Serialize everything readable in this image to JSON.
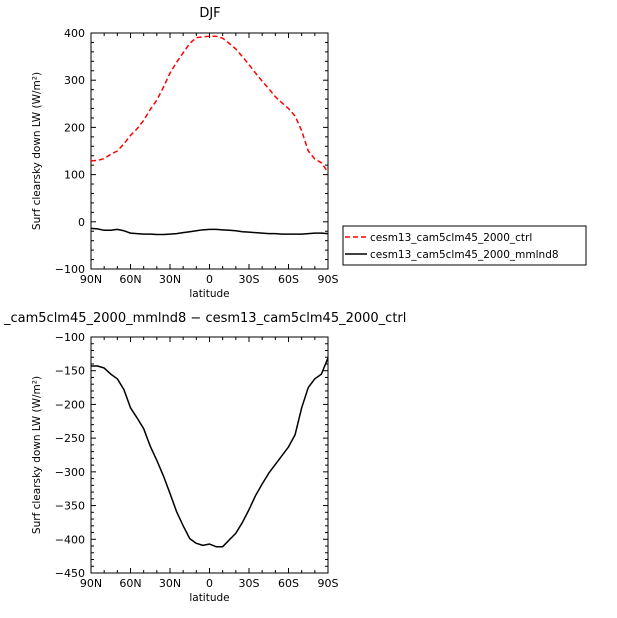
{
  "chart_data": [
    {
      "type": "line",
      "title": "DJF",
      "xlabel": "latitude",
      "ylabel": "Surf clearsky down LW (W/m²)",
      "xlim": [
        90,
        -90
      ],
      "ylim": [
        -100,
        400
      ],
      "xticks": [
        90,
        60,
        30,
        0,
        -30,
        -60,
        -90
      ],
      "xtick_labels": [
        "90N",
        "60N",
        "30N",
        "0",
        "30S",
        "60S",
        "90S"
      ],
      "yticks": [
        -100,
        0,
        100,
        200,
        300,
        400
      ],
      "ytick_labels": [
        "−100",
        "0",
        "100",
        "200",
        "300",
        "400"
      ],
      "legend_position": "right",
      "series": [
        {
          "name": "cesm13_cam5clm45_2000_ctrl",
          "color": "#ff0000",
          "style": "dashed",
          "x": [
            90,
            85,
            80,
            75,
            70,
            65,
            60,
            55,
            50,
            45,
            40,
            35,
            30,
            25,
            20,
            15,
            10,
            5,
            0,
            -5,
            -10,
            -15,
            -20,
            -25,
            -30,
            -35,
            -40,
            -45,
            -50,
            -55,
            -60,
            -65,
            -70,
            -75,
            -80,
            -85,
            -90
          ],
          "y": [
            129,
            130,
            134,
            143,
            150,
            165,
            183,
            197,
            215,
            238,
            258,
            285,
            315,
            338,
            358,
            378,
            390,
            392,
            393,
            393,
            389,
            378,
            366,
            350,
            333,
            315,
            298,
            282,
            265,
            252,
            240,
            224,
            193,
            150,
            133,
            125,
            105
          ]
        },
        {
          "name": "cesm13_cam5clm45_2000_mmlnd8",
          "color": "#000000",
          "style": "solid",
          "x": [
            90,
            85,
            80,
            75,
            70,
            65,
            60,
            55,
            50,
            45,
            40,
            35,
            30,
            25,
            20,
            15,
            10,
            5,
            0,
            -5,
            -10,
            -15,
            -20,
            -25,
            -30,
            -35,
            -40,
            -45,
            -50,
            -55,
            -60,
            -65,
            -70,
            -75,
            -80,
            -85,
            -90
          ],
          "y": [
            -14,
            -15,
            -18,
            -18,
            -16,
            -19,
            -24,
            -25,
            -26,
            -26,
            -27,
            -27,
            -26,
            -25,
            -23,
            -21,
            -19,
            -17,
            -16,
            -16,
            -17,
            -18,
            -19,
            -21,
            -22,
            -23,
            -24,
            -25,
            -25,
            -26,
            -26,
            -26,
            -26,
            -25,
            -24,
            -24,
            -25
          ]
        }
      ]
    },
    {
      "type": "line",
      "title": "_cam5clm45_2000_mmlnd8 − cesm13_cam5clm45_2000_ctrl",
      "xlabel": "latitude",
      "ylabel": "Surf clearsky down LW (W/m²)",
      "xlim": [
        90,
        -90
      ],
      "ylim": [
        -450,
        -100
      ],
      "xticks": [
        90,
        60,
        30,
        0,
        -30,
        -60,
        -90
      ],
      "xtick_labels": [
        "90N",
        "60N",
        "30N",
        "0",
        "30S",
        "60S",
        "90S"
      ],
      "yticks": [
        -450,
        -400,
        -350,
        -300,
        -250,
        -200,
        -150,
        -100
      ],
      "ytick_labels": [
        "−450",
        "−400",
        "−350",
        "−300",
        "−250",
        "−200",
        "−150",
        "−100"
      ],
      "series": [
        {
          "color": "#000000",
          "style": "solid",
          "x": [
            90,
            85,
            80,
            75,
            70,
            65,
            60,
            55,
            50,
            45,
            40,
            35,
            30,
            25,
            20,
            15,
            10,
            5,
            0,
            -5,
            -10,
            -15,
            -20,
            -25,
            -30,
            -35,
            -40,
            -45,
            -50,
            -55,
            -60,
            -65,
            -70,
            -75,
            -80,
            -85,
            -90
          ],
          "y": [
            -143,
            -143,
            -146,
            -155,
            -162,
            -178,
            -205,
            -220,
            -236,
            -262,
            -283,
            -306,
            -332,
            -359,
            -380,
            -399,
            -406,
            -409,
            -407,
            -411,
            -411,
            -401,
            -391,
            -375,
            -356,
            -335,
            -318,
            -302,
            -289,
            -276,
            -263,
            -245,
            -205,
            -175,
            -162,
            -155,
            -131
          ]
        }
      ]
    }
  ]
}
